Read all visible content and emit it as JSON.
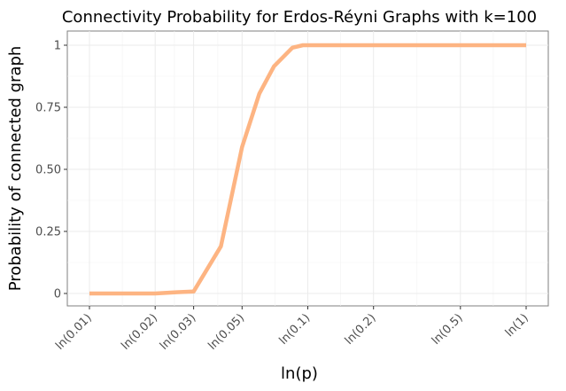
{
  "chart_data": {
    "type": "line",
    "title": "Connectivity Probability for Erdos-Réyni Graphs with k=100",
    "xlabel": "ln(p)",
    "ylabel": "Probability of connected graph",
    "x_scale": "log",
    "xlim": [
      0.01,
      1
    ],
    "ylim": [
      0,
      1
    ],
    "grid": true,
    "x_ticks": [
      {
        "value": 0.01,
        "label": "ln(0.01)"
      },
      {
        "value": 0.02,
        "label": "ln(0.02)"
      },
      {
        "value": 0.03,
        "label": "ln(0.03)"
      },
      {
        "value": 0.05,
        "label": "ln(0.05)"
      },
      {
        "value": 0.1,
        "label": "ln(0.1)"
      },
      {
        "value": 0.2,
        "label": "ln(0.2)"
      },
      {
        "value": 0.5,
        "label": "ln(0.5)"
      },
      {
        "value": 1,
        "label": "ln(1)"
      }
    ],
    "y_ticks": [
      {
        "value": 0,
        "label": "0"
      },
      {
        "value": 0.25,
        "label": "0.25"
      },
      {
        "value": 0.5,
        "label": "0.50"
      },
      {
        "value": 0.75,
        "label": "0.75"
      },
      {
        "value": 1,
        "label": "1"
      }
    ],
    "series": [
      {
        "color": "#fdb482",
        "x": [
          0.01,
          0.015,
          0.02,
          0.025,
          0.03,
          0.04,
          0.05,
          0.06,
          0.07,
          0.085,
          0.095,
          0.1,
          0.15,
          0.2,
          0.3,
          0.5,
          0.7,
          1
        ],
        "y": [
          0.0,
          0.0,
          0.0,
          0.005,
          0.008,
          0.19,
          0.59,
          0.805,
          0.915,
          0.99,
          1.0,
          1.0,
          1.0,
          1.0,
          1.0,
          1.0,
          1.0,
          1.0
        ]
      }
    ]
  }
}
